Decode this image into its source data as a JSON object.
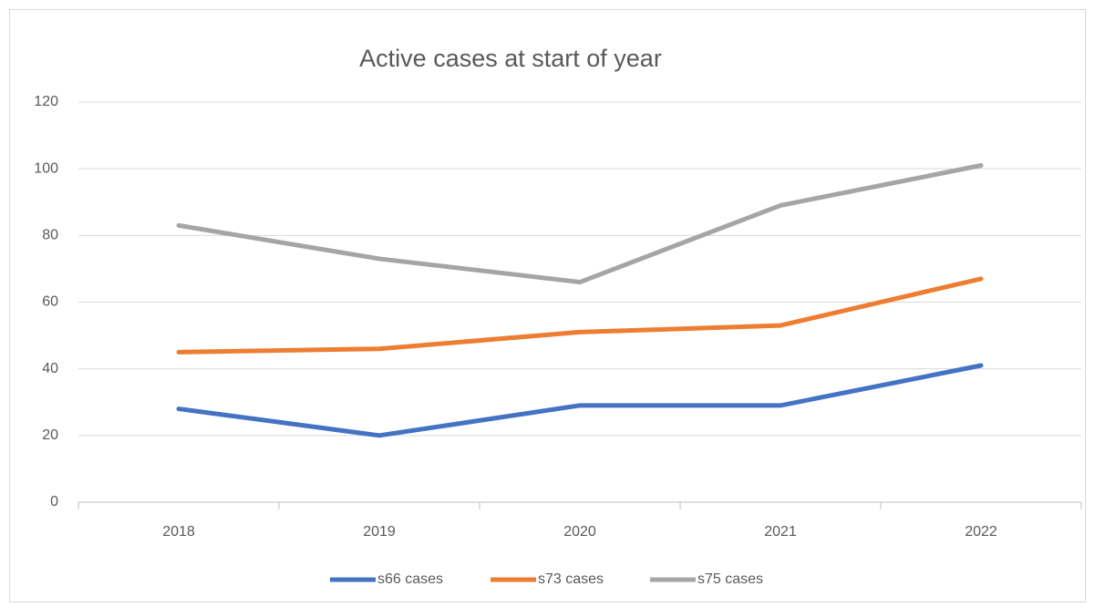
{
  "chart_data": {
    "type": "line",
    "title": "Active cases at start of year",
    "categories": [
      "2018",
      "2019",
      "2020",
      "2021",
      "2022"
    ],
    "series": [
      {
        "name": "s66 cases",
        "color": "#4472c4",
        "values": [
          28,
          20,
          29,
          29,
          41
        ]
      },
      {
        "name": "s73 cases",
        "color": "#ed7d31",
        "values": [
          45,
          46,
          51,
          53,
          67
        ]
      },
      {
        "name": "s75 cases",
        "color": "#a5a5a5",
        "values": [
          83,
          73,
          66,
          89,
          101
        ]
      }
    ],
    "ylim": [
      0,
      120
    ],
    "yticks": [
      0,
      20,
      40,
      60,
      80,
      100,
      120
    ],
    "grid": true,
    "legend": "bottom"
  }
}
